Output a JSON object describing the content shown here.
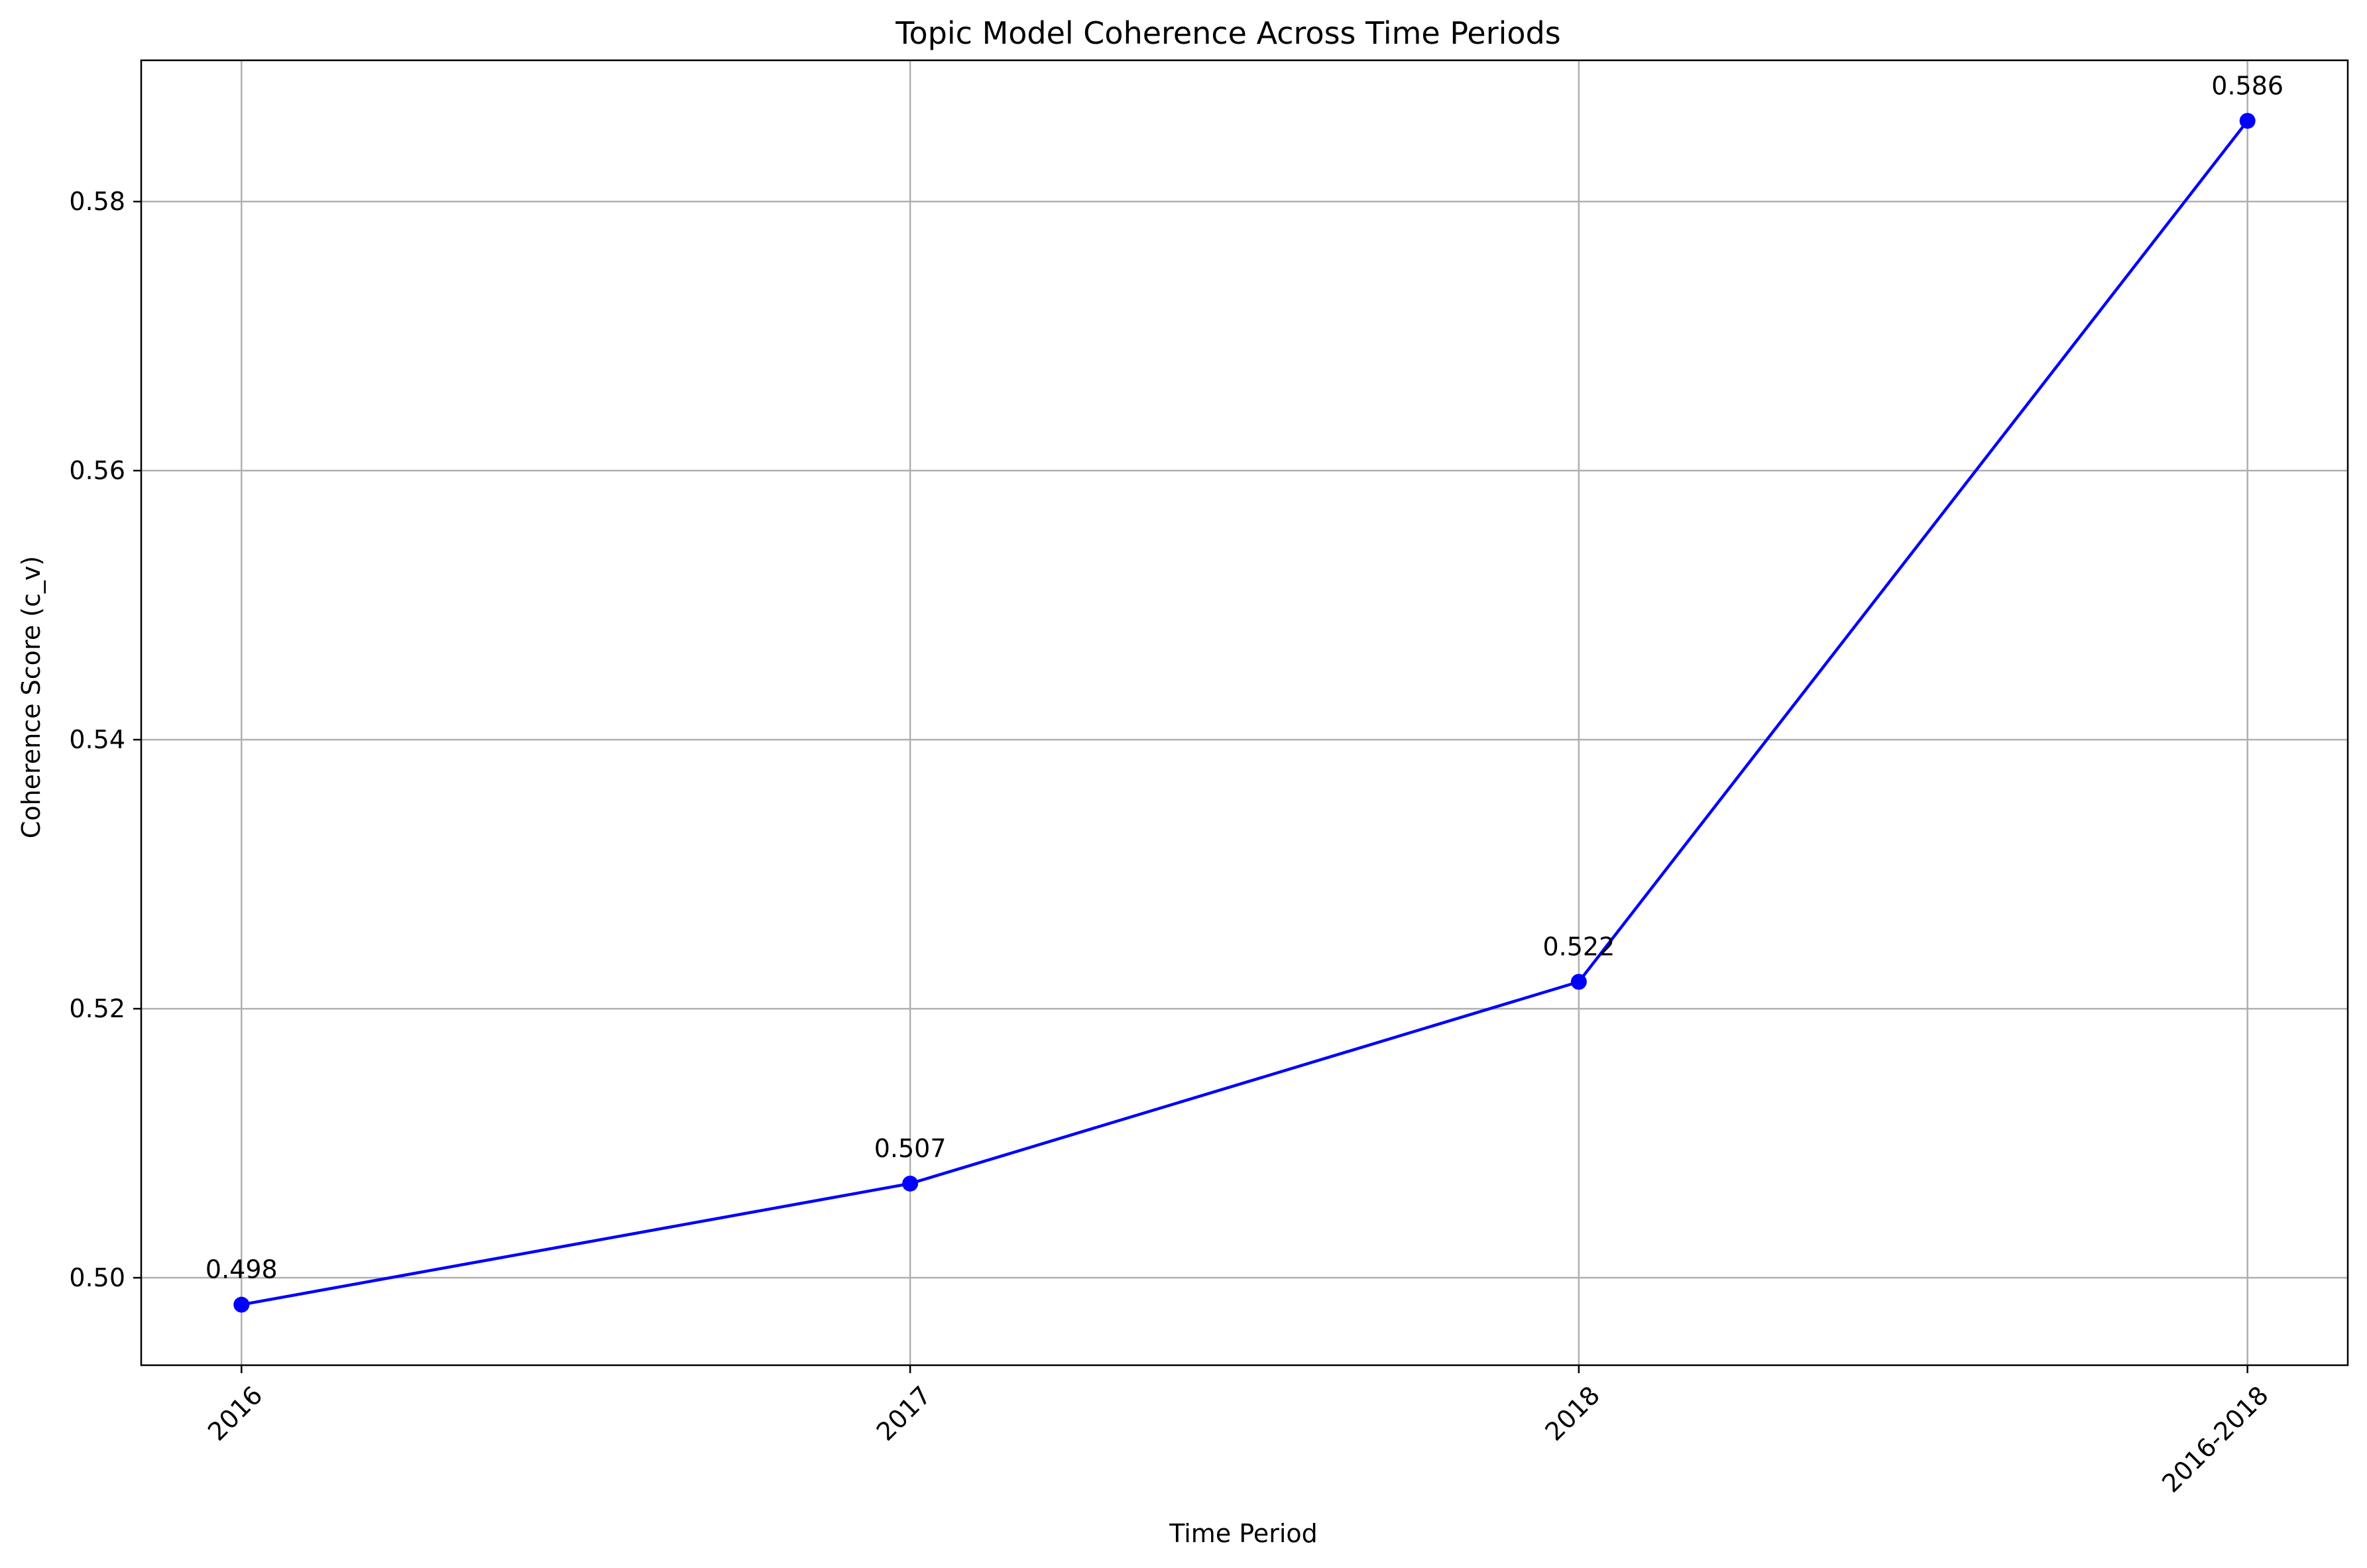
{
  "chart_data": {
    "type": "line",
    "title": "Topic Model Coherence Across Time Periods",
    "xlabel": "Time Period",
    "ylabel": "Coherence Score (c_v)",
    "categories": [
      "2016",
      "2017",
      "2018",
      "2016-2018"
    ],
    "series": [
      {
        "values": [
          0.498,
          0.507,
          0.522,
          0.586
        ],
        "data_labels": [
          "0.498",
          "0.507",
          "0.522",
          "0.586"
        ],
        "color": "#0000ff",
        "marker": "circle"
      }
    ],
    "ylim": [
      0.4935,
      0.5905
    ],
    "yticks": [
      0.5,
      0.52,
      0.54,
      0.56,
      0.58
    ],
    "ytick_labels": [
      "0.50",
      "0.52",
      "0.54",
      "0.56",
      "0.58"
    ],
    "xtick_rotation": 45,
    "grid": true,
    "grid_color": "#b0b0b0",
    "legend": "none"
  }
}
